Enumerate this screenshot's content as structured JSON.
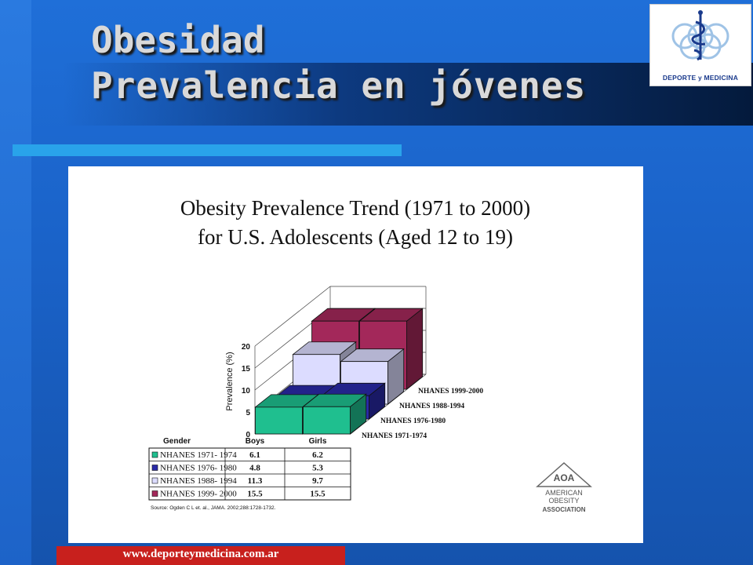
{
  "slide": {
    "title_line1": "Obesidad",
    "title_line2": "Prevalencia en jóvenes",
    "footer": "www.deporteymedicina.com.ar",
    "logo_text": "DEPORTE y MEDICINA",
    "colors": {
      "background": "#1a62c8",
      "accent_bar": "#29a3ea",
      "footer_bar": "#c8201d",
      "title_text": "#d9d9d9"
    }
  },
  "chart_data": {
    "type": "bar",
    "title_line1": "Obesity Prevalence Trend (1971 to 2000)",
    "title_line2": "for U.S. Adolescents (Aged 12 to 19)",
    "ylabel": "Prevalence (%)",
    "ylim": [
      0,
      20
    ],
    "yticks": [
      0,
      5,
      10,
      15,
      20
    ],
    "categories": [
      "Boys",
      "Girls"
    ],
    "category_header": "Gender",
    "series": [
      {
        "name": "NHANES 1971-1974",
        "table_label": "NHANES 1971- 1974",
        "values": [
          6.1,
          6.2
        ],
        "color": "#1fbf8f"
      },
      {
        "name": "NHANES 1976-1980",
        "table_label": "NHANES 1976- 1980",
        "values": [
          4.8,
          5.3
        ],
        "color": "#2a2aa8"
      },
      {
        "name": "NHANES 1988-1994",
        "table_label": "NHANES 1988- 1994",
        "values": [
          11.3,
          9.7
        ],
        "color": "#dcdcff"
      },
      {
        "name": "NHANES 1999-2000",
        "table_label": "NHANES 1999- 2000",
        "values": [
          15.5,
          15.5
        ],
        "color": "#a3285a"
      }
    ],
    "table_values": [
      [
        "6.1",
        "6.2"
      ],
      [
        "4.8",
        "5.3"
      ],
      [
        "11.3",
        "9.7"
      ],
      [
        "15.5",
        "15.5"
      ]
    ],
    "source": "Source: Ogden C L et. al., JAMA. 2002;288:1728-1732.",
    "grid": true,
    "legend_placement": "right",
    "association_logo": {
      "top": "AOA",
      "line1": "AMERICAN",
      "line2": "OBESITY",
      "line3": "ASSOCIATION"
    }
  }
}
